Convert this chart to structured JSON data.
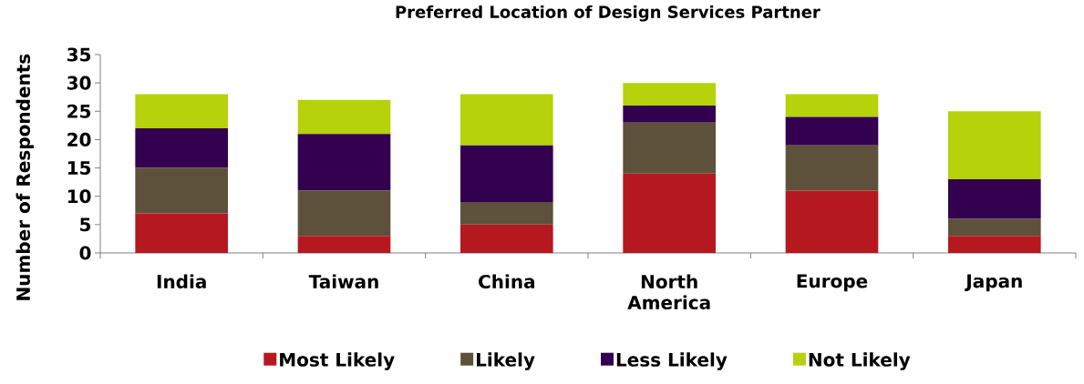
{
  "chart_data": {
    "type": "bar",
    "stacked": true,
    "title": "Preferred  Location of Design Services Partner",
    "ylabel": "Number of Respondents",
    "categories": [
      "India",
      "Taiwan",
      "China",
      "North America",
      "Europe",
      "Japan"
    ],
    "series": [
      {
        "name": "Most Likely",
        "color": "#b5191f",
        "values": [
          7,
          3,
          5,
          14,
          11,
          3
        ]
      },
      {
        "name": "Likely",
        "color": "#5e513b",
        "values": [
          8,
          8,
          4,
          9,
          8,
          3
        ]
      },
      {
        "name": "Less Likely",
        "color": "#330050",
        "values": [
          7,
          10,
          10,
          3,
          5,
          7
        ]
      },
      {
        "name": "Not Likely",
        "color": "#b5d20b",
        "values": [
          6,
          6,
          9,
          4,
          4,
          12
        ]
      }
    ],
    "ylim": [
      0,
      35
    ],
    "yticks": [
      0,
      5,
      10,
      15,
      20,
      25,
      30,
      35
    ],
    "grid": false,
    "legend": "bottom"
  }
}
